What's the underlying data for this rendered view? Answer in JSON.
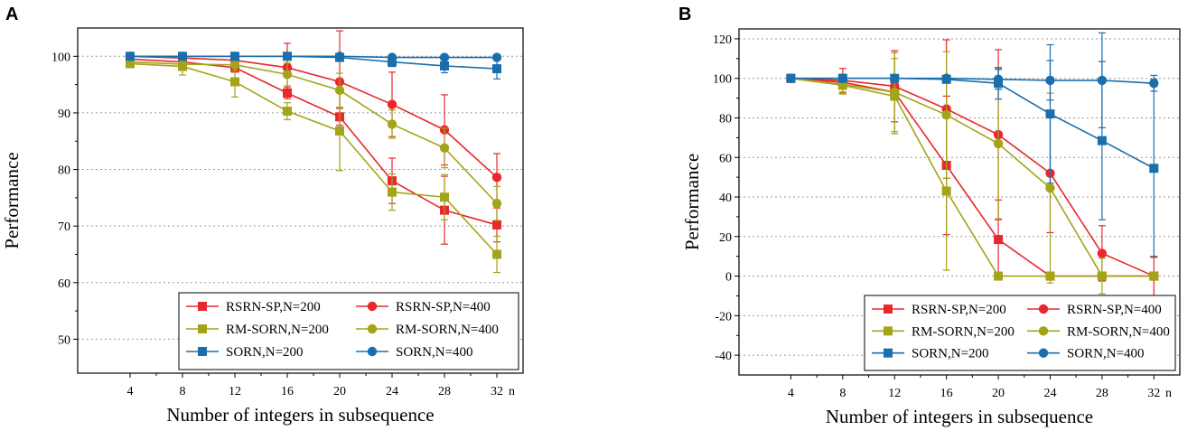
{
  "chart_data": [
    {
      "type": "line",
      "panel": "A",
      "xlabel": "Number of integers in subsequence",
      "x_unit_label": "n",
      "ylabel": "Performance",
      "x": [
        4,
        8,
        12,
        16,
        20,
        24,
        28,
        32
      ],
      "xlim": [
        0,
        34
      ],
      "ylim": [
        44,
        105
      ],
      "yticks": [
        50,
        60,
        70,
        80,
        90,
        100
      ],
      "grid": true,
      "legend_position": "bottom-right",
      "series": [
        {
          "name": "RSRN-SP,N=200",
          "marker": "square",
          "color": "#e8282c",
          "values": [
            99.5,
            99,
            98,
            93.5,
            89.3,
            78,
            72.8,
            70.2
          ],
          "errors": [
            0.3,
            0.5,
            0.8,
            1,
            1.5,
            4,
            6,
            3
          ]
        },
        {
          "name": "RSRN-SP,N=400",
          "marker": "circle",
          "color": "#e8282c",
          "values": [
            100,
            99.7,
            99.3,
            98,
            95.5,
            91.5,
            87,
            78.6
          ],
          "errors": [
            0.2,
            0.3,
            0.5,
            4.3,
            9,
            5.7,
            6.2,
            4.2
          ]
        },
        {
          "name": "RM-SORN,N=200",
          "marker": "square",
          "color": "#a4a41a",
          "values": [
            98.7,
            98.2,
            95.5,
            90.3,
            86.8,
            76,
            75.1,
            65
          ],
          "errors": [
            0.5,
            1.5,
            2.7,
            1.5,
            7,
            3.2,
            4,
            3.2
          ]
        },
        {
          "name": "RM-SORN,N=400",
          "marker": "circle",
          "color": "#a4a41a",
          "values": [
            99,
            98.6,
            98.5,
            96.8,
            94,
            88,
            83.8,
            74
          ],
          "errors": [
            0.3,
            0.5,
            1,
            2,
            3,
            2.5,
            3.5,
            3
          ]
        },
        {
          "name": "SORN,N=200",
          "marker": "square",
          "color": "#1b6eac",
          "values": [
            100,
            100,
            100,
            100,
            99.8,
            99,
            98.3,
            97.8
          ],
          "errors": [
            0.1,
            0.1,
            0.1,
            0.1,
            0.3,
            0.8,
            1.2,
            1.8
          ]
        },
        {
          "name": "SORN,N=400",
          "marker": "circle",
          "color": "#1b6eac",
          "values": [
            100,
            100,
            100,
            100,
            100,
            99.8,
            99.8,
            99.8
          ],
          "errors": [
            0,
            0,
            0,
            0,
            0,
            0.1,
            0.1,
            0.1
          ]
        }
      ]
    },
    {
      "type": "line",
      "panel": "B",
      "xlabel": "Number of integers in subsequence",
      "x_unit_label": "n",
      "ylabel": "Performance",
      "x": [
        4,
        8,
        12,
        16,
        20,
        24,
        28,
        32
      ],
      "xlim": [
        0,
        34
      ],
      "ylim": [
        -50,
        125
      ],
      "yticks": [
        -40,
        -20,
        0,
        20,
        40,
        60,
        80,
        100,
        120
      ],
      "grid": true,
      "legend_position": "bottom-right",
      "series": [
        {
          "name": "RSRN-SP,N=200",
          "marker": "square",
          "color": "#e8282c",
          "values": [
            100,
            98,
            93,
            56,
            18.5,
            0,
            0,
            0
          ],
          "errors": [
            0.5,
            2,
            4,
            35,
            20,
            0,
            0,
            0
          ]
        },
        {
          "name": "RSRN-SP,N=400",
          "marker": "circle",
          "color": "#e8282c",
          "values": [
            100,
            99,
            96,
            84.5,
            71.5,
            52,
            11.5,
            0
          ],
          "errors": [
            0.5,
            6,
            18,
            35,
            43,
            30,
            14,
            10
          ]
        },
        {
          "name": "RM-SORN,N=200",
          "marker": "square",
          "color": "#a4a41a",
          "values": [
            100,
            96.5,
            91,
            43,
            0,
            0,
            0,
            0
          ],
          "errors": [
            0.5,
            4,
            19,
            40,
            0,
            0,
            0,
            0
          ]
        },
        {
          "name": "RM-SORN,N=400",
          "marker": "circle",
          "color": "#a4a41a",
          "values": [
            100,
            97,
            93,
            81.5,
            67,
            44.5,
            0,
            0
          ],
          "errors": [
            0.5,
            5,
            20,
            32,
            38,
            48,
            9,
            0
          ]
        },
        {
          "name": "SORN,N=200",
          "marker": "square",
          "color": "#1b6eac",
          "values": [
            100,
            100,
            100,
            99.5,
            97.5,
            82,
            68.5,
            54.5
          ],
          "errors": [
            0.5,
            0.5,
            0.5,
            1,
            8,
            35,
            40,
            45
          ]
        },
        {
          "name": "SORN,N=400",
          "marker": "circle",
          "color": "#1b6eac",
          "values": [
            100,
            100,
            100,
            100,
            99.5,
            99,
            99,
            97.5
          ],
          "errors": [
            0.1,
            0.1,
            0.2,
            0.5,
            5,
            10,
            24,
            4
          ]
        }
      ]
    }
  ]
}
